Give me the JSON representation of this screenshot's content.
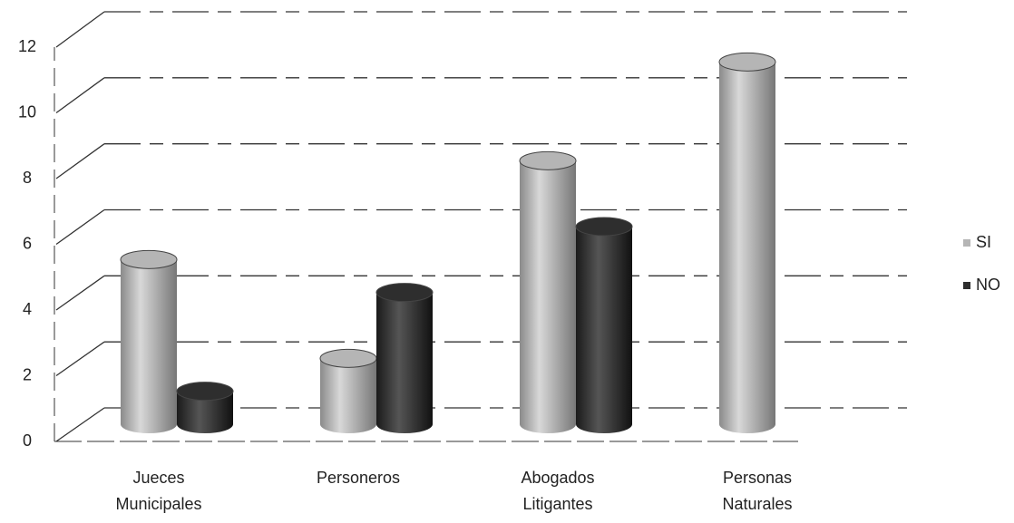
{
  "chart_data": {
    "type": "bar3d",
    "categories": [
      "Jueces Municipales",
      "Personeros",
      "Abogados Litigantes",
      "Personas Naturales"
    ],
    "series": [
      {
        "name": "SI",
        "color": "#b5b5b5",
        "values": [
          5,
          2,
          8,
          11
        ]
      },
      {
        "name": "NO",
        "color": "#2e2e2e",
        "values": [
          1,
          4,
          6,
          0
        ]
      }
    ],
    "ylim": [
      0,
      12
    ],
    "yticks": [
      0,
      2,
      4,
      6,
      8,
      10,
      12
    ],
    "grid": true,
    "legend": "right"
  }
}
